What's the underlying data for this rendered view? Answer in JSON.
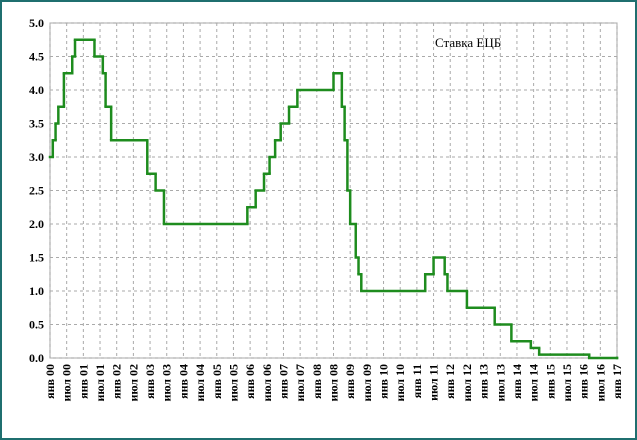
{
  "chart_data": {
    "type": "step",
    "legend": "top-right",
    "grid": true,
    "series": [
      {
        "name": "Ставка ЕЦБ",
        "color": "#1e8c1e",
        "x": [
          "2000-01",
          "2000-02",
          "2000-03",
          "2000-04",
          "2000-06",
          "2000-09",
          "2000-10",
          "2001-05",
          "2001-08",
          "2001-09",
          "2001-11",
          "2002-12",
          "2003-03",
          "2003-06",
          "2005-12",
          "2006-03",
          "2006-06",
          "2006-08",
          "2006-10",
          "2006-12",
          "2007-03",
          "2007-06",
          "2008-07",
          "2008-10",
          "2008-11",
          "2008-12",
          "2009-01",
          "2009-03",
          "2009-04",
          "2009-05",
          "2011-04",
          "2011-07",
          "2011-11",
          "2011-12",
          "2012-07",
          "2013-05",
          "2013-11",
          "2014-06",
          "2014-09",
          "2016-03",
          "2017-01"
        ],
        "values": [
          3.0,
          3.25,
          3.5,
          3.75,
          4.25,
          4.5,
          4.75,
          4.5,
          4.25,
          3.75,
          3.25,
          2.75,
          2.5,
          2.0,
          2.25,
          2.5,
          2.75,
          3.0,
          3.25,
          3.5,
          3.75,
          4.0,
          4.25,
          3.75,
          3.25,
          2.5,
          2.0,
          1.5,
          1.25,
          1.0,
          1.25,
          1.5,
          1.25,
          1.0,
          0.75,
          0.5,
          0.25,
          0.15,
          0.05,
          0.0,
          0.0
        ]
      }
    ],
    "ylim": [
      0,
      5
    ],
    "yticks": [
      {
        "value": 0,
        "label": "0.0"
      },
      {
        "value": 0.5,
        "label": "0.5"
      },
      {
        "value": 1,
        "label": "1.0"
      },
      {
        "value": 1.5,
        "label": "1.5"
      },
      {
        "value": 2,
        "label": "2.0"
      },
      {
        "value": 2.5,
        "label": "2.5"
      },
      {
        "value": 3,
        "label": "3.0"
      },
      {
        "value": 3.5,
        "label": "3.5"
      },
      {
        "value": 4,
        "label": "4.0"
      },
      {
        "value": 4.5,
        "label": "4.5"
      },
      {
        "value": 5,
        "label": "5.0"
      }
    ],
    "xlim": [
      "2000-01",
      "2017-01"
    ],
    "xticks": [
      {
        "value": "2000-01",
        "label": "янв 00"
      },
      {
        "value": "2000-07",
        "label": "июл 00"
      },
      {
        "value": "2001-01",
        "label": "янв 01"
      },
      {
        "value": "2001-07",
        "label": "июл 01"
      },
      {
        "value": "2002-01",
        "label": "янв 02"
      },
      {
        "value": "2002-07",
        "label": "июл 02"
      },
      {
        "value": "2003-01",
        "label": "янв 03"
      },
      {
        "value": "2003-07",
        "label": "июл 03"
      },
      {
        "value": "2004-01",
        "label": "янв 04"
      },
      {
        "value": "2004-07",
        "label": "июл 04"
      },
      {
        "value": "2005-01",
        "label": "янв 05"
      },
      {
        "value": "2005-07",
        "label": "июл 05"
      },
      {
        "value": "2006-01",
        "label": "янв 06"
      },
      {
        "value": "2006-07",
        "label": "июл 06"
      },
      {
        "value": "2007-01",
        "label": "янв 07"
      },
      {
        "value": "2007-07",
        "label": "июл 07"
      },
      {
        "value": "2008-01",
        "label": "янв 08"
      },
      {
        "value": "2008-07",
        "label": "июл 08"
      },
      {
        "value": "2009-01",
        "label": "янв 09"
      },
      {
        "value": "2009-07",
        "label": "июл 09"
      },
      {
        "value": "2010-01",
        "label": "янв 10"
      },
      {
        "value": "2010-07",
        "label": "июл 10"
      },
      {
        "value": "2011-01",
        "label": "янв 11"
      },
      {
        "value": "2011-07",
        "label": "июл 11"
      },
      {
        "value": "2012-01",
        "label": "янв 12"
      },
      {
        "value": "2012-07",
        "label": "июл 12"
      },
      {
        "value": "2013-01",
        "label": "янв 13"
      },
      {
        "value": "2013-07",
        "label": "июл 13"
      },
      {
        "value": "2014-01",
        "label": "янв 14"
      },
      {
        "value": "2014-07",
        "label": "июл 14"
      },
      {
        "value": "2015-01",
        "label": "янв 15"
      },
      {
        "value": "2015-07",
        "label": "июл 15"
      },
      {
        "value": "2016-01",
        "label": "янв 16"
      },
      {
        "value": "2016-07",
        "label": "июл 16"
      },
      {
        "value": "2017-01",
        "label": "янв 17"
      }
    ]
  }
}
